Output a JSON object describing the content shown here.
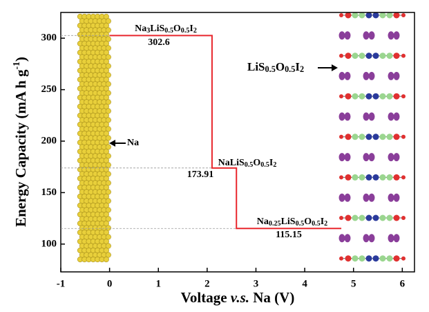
{
  "chart_data": {
    "type": "line",
    "xlabel": "Voltage v.s. Na (V)",
    "ylabel": "Energy Capacity (mA h g-1)",
    "xlim": [
      -1,
      6.25
    ],
    "ylim": [
      73,
      325
    ],
    "xticks": [
      -1,
      0,
      1,
      2,
      3,
      4,
      5,
      6
    ],
    "yticks": [
      100,
      150,
      200,
      250,
      300
    ],
    "series": [
      {
        "color": "#e8262c",
        "x": [
          0,
          2.1,
          2.1,
          2.6,
          2.6,
          4.75
        ],
        "values": [
          302.6,
          302.6,
          173.91,
          173.91,
          115.15,
          115.15
        ]
      }
    ],
    "annotations": [
      "Na3LiS0.5O0.5I2",
      "NaLiS0.5O0.5I2",
      "Na0.25LiS0.5O0.5I2",
      "Na",
      "LiS0.5O0.5I2"
    ]
  }
}
